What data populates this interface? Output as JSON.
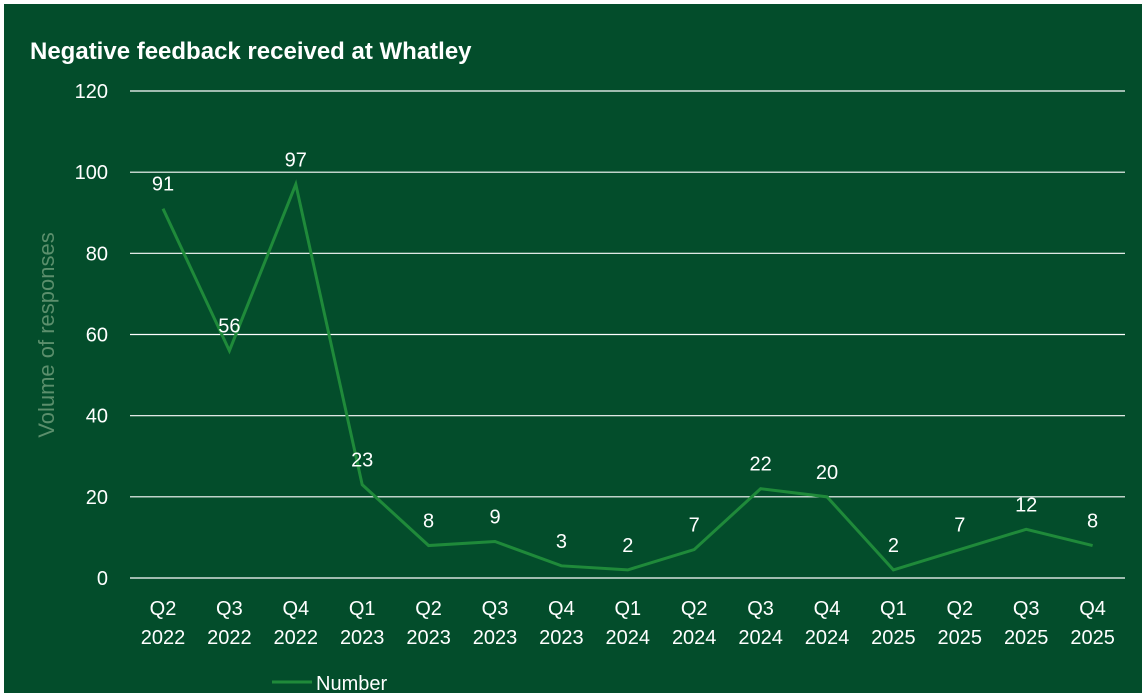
{
  "colors": {
    "background": "#034d2b",
    "line": "#1f8a3a",
    "grid": "#ffffff",
    "text": "#ffffff",
    "ylabel": "#5b8f6c"
  },
  "chart_data": {
    "type": "line",
    "title": "Negative feedback received at Whatley",
    "xlabel": "",
    "ylabel": "Volume of responses",
    "ylim": [
      0,
      120
    ],
    "yticks": [
      0,
      20,
      40,
      60,
      80,
      100,
      120
    ],
    "grid": true,
    "legend_position": "bottom-left",
    "categories": [
      [
        "Q2",
        "2022"
      ],
      [
        "Q3",
        "2022"
      ],
      [
        "Q4",
        "2022"
      ],
      [
        "Q1",
        "2023"
      ],
      [
        "Q2",
        "2023"
      ],
      [
        "Q3",
        "2023"
      ],
      [
        "Q4",
        "2023"
      ],
      [
        "Q1",
        "2024"
      ],
      [
        "Q2",
        "2024"
      ],
      [
        "Q3",
        "2024"
      ],
      [
        "Q4",
        "2024"
      ],
      [
        "Q1",
        "2025"
      ],
      [
        "Q2",
        "2025"
      ],
      [
        "Q3",
        "2025"
      ],
      [
        "Q4",
        "2025"
      ]
    ],
    "series": [
      {
        "name": "Number",
        "values": [
          91,
          56,
          97,
          23,
          8,
          9,
          3,
          2,
          7,
          22,
          20,
          2,
          7,
          12,
          8
        ]
      }
    ]
  }
}
